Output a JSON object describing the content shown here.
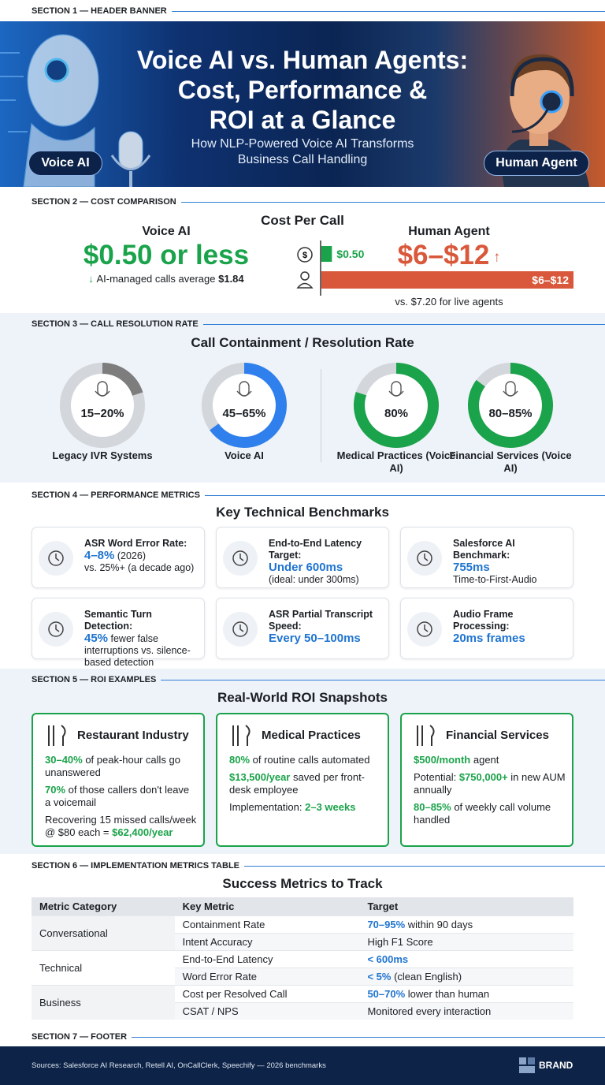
{
  "sections": [
    "SECTION 1 — HEADER BANNER",
    "SECTION 2 — COST COMPARISON",
    "SECTION 3 — CALL RESOLUTION RATE",
    "SECTION 4 — PERFORMANCE METRICS",
    "SECTION 5 — ROI EXAMPLES",
    "SECTION 6 — IMPLEMENTATION METRICS TABLE",
    "SECTION 7 — FOOTER"
  ],
  "header": {
    "title_lines": [
      "Voice AI vs. Human Agents:",
      "Cost, Performance &",
      "ROI at a Glance"
    ],
    "subtitle_lines": [
      "How NLP-Powered Voice AI Transforms",
      "Business Call Handling"
    ],
    "left_badge": "Voice AI",
    "right_badge": "Human Agent"
  },
  "cost": {
    "heading": "Cost Per Call",
    "voice_ai": {
      "label": "Voice AI",
      "price": "$0.50 or less",
      "note_pre": "AI-managed calls average ",
      "note_em": "$1.84"
    },
    "human": {
      "label": "Human Agent",
      "price": "$6–$12",
      "note_pre": "vs. $7.20 for live agents"
    },
    "bars": [
      {
        "value": 0.5,
        "label": "$0.50",
        "color": "#1aa34a"
      },
      {
        "value": 12,
        "label": "$6–$12",
        "color": "#d9583b"
      }
    ]
  },
  "resolution": {
    "heading": "Call Containment / Resolution Rate",
    "items": [
      {
        "label": "Legacy IVR Systems",
        "rate": {
          "value": 20,
          "label": "15–20%"
        },
        "color": "#7d7d7d"
      },
      {
        "label": "Voice AI",
        "rate": {
          "value": 65,
          "label": "45–65%"
        },
        "color": "#2f80ed"
      },
      {
        "label": "Medical Practices (Voice AI)",
        "rate": {
          "value": 80,
          "label": "80%"
        },
        "color": "#1aa34a"
      },
      {
        "label": "Financial Services (Voice AI)",
        "rate": {
          "value": 85,
          "label": "80–85%"
        },
        "color": "#1aa34a"
      }
    ]
  },
  "metrics": {
    "heading": "Key Technical Benchmarks",
    "cards": [
      {
        "title": "ASR Word Error Rate:",
        "value": "4–8%",
        "inline": " (2026)",
        "sub": "vs. 25%+ (a decade ago)"
      },
      {
        "title": "End-to-End Latency Target:",
        "value": "Under 600ms",
        "sub": "(ideal: under 300ms)"
      },
      {
        "title": "Salesforce AI Benchmark:",
        "value": "755ms",
        "sub": "Time-to-First-Audio"
      },
      {
        "title": "Semantic Turn Detection:",
        "value": "45%",
        "inline": " fewer false interruptions vs. silence-based detection"
      },
      {
        "title": "ASR Partial Transcript Speed:",
        "value": "Every 50–100ms"
      },
      {
        "title": "Audio Frame Processing:",
        "value": "20ms frames"
      }
    ]
  },
  "roi": {
    "heading": "Real-World ROI Snapshots",
    "cards": [
      {
        "title": "Restaurant Industry",
        "items": [
          {
            "em": "30–40%",
            "post": " of peak-hour calls go unanswered"
          },
          {
            "em": "70%",
            "post": " of those callers don't leave a voicemail"
          },
          {
            "pre": "Recovering 15 missed calls/week @ $80 each = ",
            "em": "$62,400/year"
          }
        ]
      },
      {
        "title": "Medical Practices",
        "items": [
          {
            "em": "80%",
            "post": " of routine calls automated"
          },
          {
            "em": "$13,500/year",
            "post": " saved per front-desk employee"
          },
          {
            "pre": "Implementation: ",
            "em": "2–3 weeks"
          }
        ]
      },
      {
        "title": "Financial Services",
        "items": [
          {
            "em": "$500/month",
            "post": " agent"
          },
          {
            "pre": "Potential: ",
            "em": "$750,000+",
            "post": " in new AUM annually"
          },
          {
            "em": "80–85%",
            "post": " of weekly call volume handled"
          }
        ]
      }
    ]
  },
  "table": {
    "heading": "Success Metrics to Track",
    "columns": [
      "Metric Category",
      "Key Metric",
      "Target"
    ],
    "groups": [
      {
        "name": "Conversational",
        "rows": [
          {
            "metric": "Containment Rate",
            "target": {
              "em": "70–95%",
              "post": " within 90 days"
            }
          },
          {
            "metric": "Intent Accuracy",
            "target": {
              "pre": "High F1 Score"
            }
          }
        ]
      },
      {
        "name": "Technical",
        "rows": [
          {
            "metric": "End-to-End Latency",
            "target": {
              "em": "< 600ms"
            }
          },
          {
            "metric": "Word Error Rate",
            "target": {
              "em": "< 5%",
              "post": " (clean English)"
            }
          }
        ]
      },
      {
        "name": "Business",
        "rows": [
          {
            "metric": "Cost per Resolved Call",
            "target": {
              "em": "50–70%",
              "post": " lower than human"
            }
          },
          {
            "metric": "CSAT / NPS",
            "target": {
              "pre": "Monitored every interaction"
            }
          }
        ]
      }
    ]
  },
  "footer": {
    "sources": "Sources: Salesforce AI Research, Retell AI, OnCallClerk, Speechify — 2026 benchmarks",
    "brand": "BRAND"
  }
}
